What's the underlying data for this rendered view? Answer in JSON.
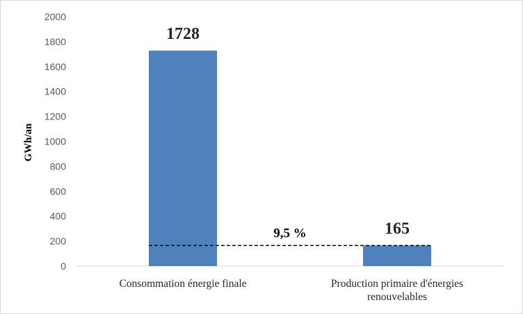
{
  "chart_data": {
    "type": "bar",
    "title": "",
    "xlabel": "",
    "ylabel": "GWh/an",
    "ylim": [
      0,
      2000
    ],
    "yticks": [
      0,
      200,
      400,
      600,
      800,
      1000,
      1200,
      1400,
      1600,
      1800,
      2000
    ],
    "categories": [
      [
        "Consommation énergie finale"
      ],
      [
        "Production primaire d'énergies",
        "renouvelables"
      ]
    ],
    "values": [
      1728,
      165
    ],
    "data_labels": [
      "1728",
      "165"
    ],
    "bar_color": "#4f81bd",
    "reference_line": {
      "value": 165,
      "style": "dashed",
      "color": "#000000"
    },
    "annotation": "9,5 %",
    "grid": false,
    "legend": "none"
  }
}
